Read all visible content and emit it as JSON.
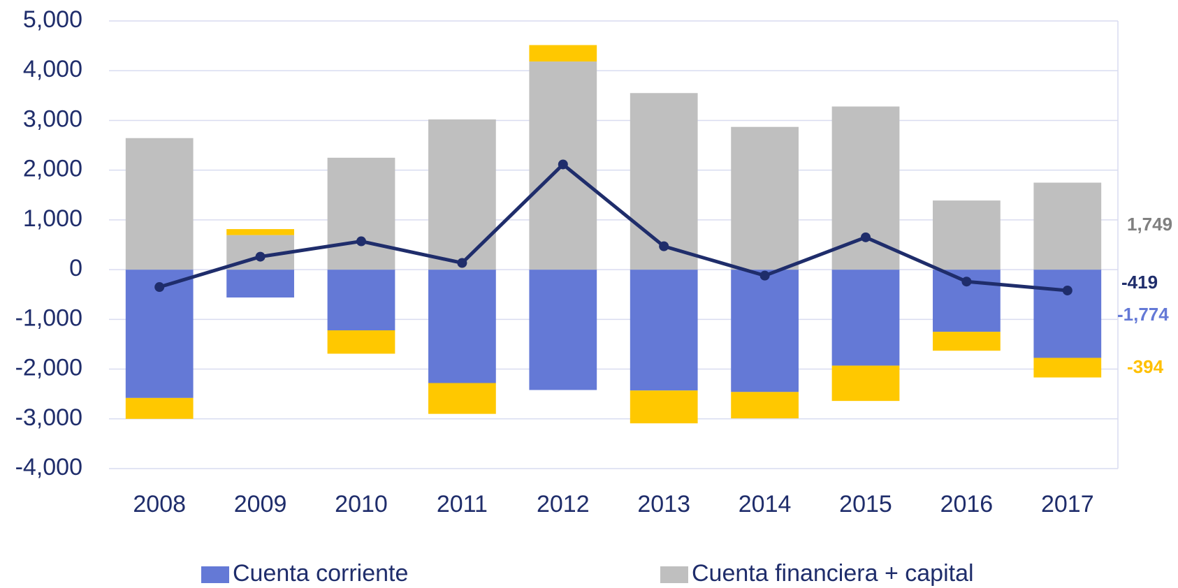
{
  "chart_data": {
    "type": "bar",
    "categories": [
      "2008",
      "2009",
      "2010",
      "2011",
      "2012",
      "2013",
      "2014",
      "2015",
      "2016",
      "2017"
    ],
    "series": [
      {
        "name": "Cuenta corriente",
        "color": "#6479d6",
        "values": [
          -2580,
          -560,
          -1220,
          -2280,
          -2420,
          -2430,
          -2460,
          -1930,
          -1250,
          -1774
        ],
        "value_labels": [
          null,
          null,
          null,
          null,
          null,
          null,
          null,
          null,
          null,
          "-1,774"
        ]
      },
      {
        "name": "Cuenta financiera + capital",
        "color": "#bfbfbf",
        "values": [
          2645,
          695,
          2250,
          3020,
          4185,
          3550,
          2870,
          3280,
          1390,
          1749
        ],
        "value_labels": [
          null,
          null,
          null,
          null,
          null,
          null,
          null,
          null,
          null,
          "1,749"
        ]
      },
      {
        "color": "#ffc800",
        "values": [
          -420,
          120,
          -470,
          -620,
          330,
          -660,
          -530,
          -710,
          -380,
          -394
        ],
        "value_labels": [
          null,
          null,
          null,
          null,
          null,
          null,
          null,
          null,
          null,
          "-394"
        ]
      },
      {
        "type": "line",
        "color": "#1f2d6b",
        "values": [
          -350,
          260,
          570,
          135,
          2115,
          470,
          -120,
          650,
          -240,
          -419
        ],
        "value_labels": [
          null,
          null,
          null,
          null,
          null,
          null,
          null,
          null,
          null,
          "-419"
        ]
      }
    ],
    "ylim": [
      -4000,
      5000
    ],
    "yticks": [
      {
        "value": -4000,
        "label": "-4,000"
      },
      {
        "value": -3000,
        "label": "-3,000"
      },
      {
        "value": -2000,
        "label": "-2,000"
      },
      {
        "value": -1000,
        "label": "-1,000"
      },
      0,
      {
        "value": 1000,
        "label": "1,000"
      },
      {
        "value": 2000,
        "label": "2,000"
      },
      {
        "value": 3000,
        "label": "3,000"
      },
      {
        "value": 4000,
        "label": "4,000"
      },
      {
        "value": 5000,
        "label": "5,000"
      }
    ],
    "grid": true
  }
}
